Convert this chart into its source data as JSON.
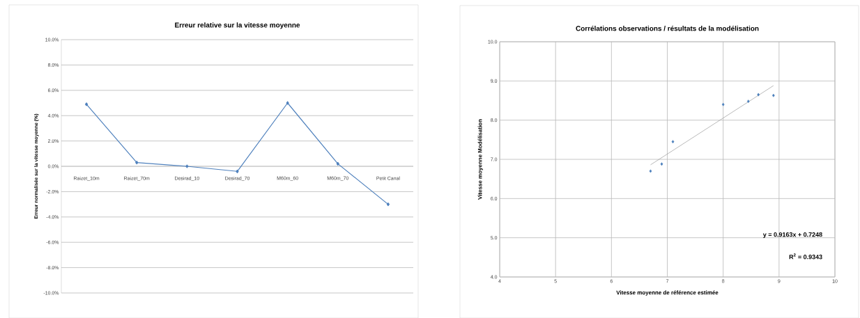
{
  "chart_data": [
    {
      "type": "line",
      "title": "Erreur relative sur la vitesse moyenne",
      "ylabel": "Erreur normalisée sur la vitesse moyenne (%)",
      "categories": [
        "Raizet_10m",
        "Raizet_70m",
        "Desirad_10",
        "Desirad_70",
        "M60m_60",
        "M60m_70",
        "Petit Canal"
      ],
      "values": [
        4.9,
        0.3,
        0.0,
        -0.4,
        5.0,
        0.2,
        -3.0
      ],
      "color": "#4f81bd",
      "ylim": [
        -10,
        10
      ],
      "yticks": [
        {
          "value": -10,
          "label": "-10.0%"
        },
        {
          "value": -8,
          "label": "-8.0%"
        },
        {
          "value": -6,
          "label": "-6.0%"
        },
        {
          "value": -4,
          "label": "-4.0%"
        },
        {
          "value": -2,
          "label": "-2.0%"
        },
        {
          "value": 0,
          "label": "0.0%"
        },
        {
          "value": 2,
          "label": "2.0%"
        },
        {
          "value": 4,
          "label": "4.0%"
        },
        {
          "value": 6,
          "label": "6.0%"
        },
        {
          "value": 8,
          "label": "8.0%"
        },
        {
          "value": 10,
          "label": "10.0%"
        }
      ],
      "grid": "y",
      "marker": "diamond"
    },
    {
      "type": "scatter",
      "title": "Corrélations observations / résultats de la modélisation",
      "xlabel": "Vitesse moyenne de référence estimée",
      "ylabel": "Vitesse moyenne Modélisation",
      "series": [
        {
          "type": "scatter",
          "color": "#4a7ebb",
          "x": [
            6.7,
            6.9,
            7.1,
            8.0,
            8.45,
            8.63,
            8.9
          ],
          "values": [
            6.7,
            6.88,
            7.45,
            8.4,
            8.48,
            8.65,
            8.63
          ]
        },
        {
          "type": "line",
          "color": "#8c8c8c",
          "x": [
            6.7,
            8.9
          ],
          "values": [
            6.86,
            8.88
          ],
          "marker": "none"
        }
      ],
      "xlim": [
        4,
        10
      ],
      "ylim": [
        4,
        10
      ],
      "xticks": [
        4,
        5,
        6,
        7,
        8,
        9,
        10
      ],
      "yticks": [
        {
          "value": 4,
          "label": "4.0"
        },
        {
          "value": 5,
          "label": "5.0"
        },
        {
          "value": 6,
          "label": "6.0"
        },
        {
          "value": 7,
          "label": "7.0"
        },
        {
          "value": 8,
          "label": "8.0"
        },
        {
          "value": 9,
          "label": "9.0"
        },
        {
          "value": 10,
          "label": "10.0"
        }
      ],
      "grid": true,
      "marker": "diamond",
      "annotations": [
        "y = 0.9163x + 0.7248",
        "R$^{2}$ = 0.9343"
      ]
    }
  ]
}
